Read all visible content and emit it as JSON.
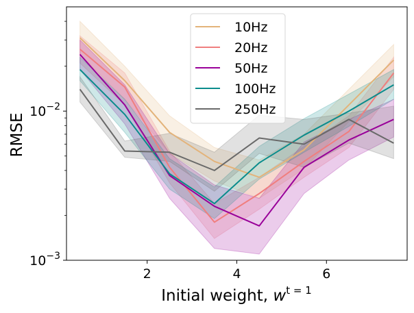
{
  "chart_data": {
    "type": "line",
    "xlabel": "Initial weight, ",
    "xlabel_symbol": "w",
    "xlabel_sup": "t = 1",
    "ylabel": "RMSE",
    "yscale": "log",
    "xlim": [
      0.2,
      7.8
    ],
    "ylim": [
      0.001,
      0.05
    ],
    "xticks": [
      2,
      4,
      6
    ],
    "yticks": [
      {
        "value": 0.001,
        "base": "10",
        "exp": "−3"
      },
      {
        "value": 0.01,
        "base": "10",
        "exp": "−2"
      }
    ],
    "legend_position": "top-center",
    "x": [
      0.5,
      1.5,
      2.5,
      3.5,
      4.5,
      5.5,
      6.5,
      7.5
    ],
    "series": [
      {
        "name": "10Hz",
        "color": "#e3b37a",
        "values": [
          0.031,
          0.016,
          0.0072,
          0.0046,
          0.0036,
          0.0055,
          0.011,
          0.022
        ],
        "lower": [
          0.024,
          0.012,
          0.0052,
          0.0034,
          0.0026,
          0.0041,
          0.0085,
          0.017
        ],
        "upper": [
          0.04,
          0.02,
          0.0093,
          0.0057,
          0.0047,
          0.007,
          0.014,
          0.028
        ]
      },
      {
        "name": "20Hz",
        "color": "#f07e7e",
        "values": [
          0.026,
          0.0145,
          0.0042,
          0.0018,
          0.0028,
          0.0046,
          0.0073,
          0.018
        ],
        "lower": [
          0.021,
          0.011,
          0.0033,
          0.0014,
          0.0022,
          0.0036,
          0.0057,
          0.014
        ],
        "upper": [
          0.032,
          0.018,
          0.0054,
          0.0024,
          0.0036,
          0.0058,
          0.0093,
          0.023
        ]
      },
      {
        "name": "50Hz",
        "color": "#990099",
        "values": [
          0.024,
          0.011,
          0.0037,
          0.0023,
          0.0017,
          0.0042,
          0.0064,
          0.0088
        ],
        "lower": [
          0.019,
          0.0082,
          0.0026,
          0.0012,
          0.0011,
          0.0028,
          0.0047,
          0.0067
        ],
        "upper": [
          0.03,
          0.015,
          0.0052,
          0.0032,
          0.0026,
          0.0062,
          0.0088,
          0.012
        ]
      },
      {
        "name": "100Hz",
        "color": "#0a8c8c",
        "values": [
          0.019,
          0.0095,
          0.0038,
          0.0024,
          0.0045,
          0.0069,
          0.01,
          0.015
        ],
        "lower": [
          0.016,
          0.0072,
          0.003,
          0.0019,
          0.0035,
          0.0053,
          0.0079,
          0.012
        ],
        "upper": [
          0.023,
          0.012,
          0.0048,
          0.0031,
          0.0058,
          0.0089,
          0.013,
          0.019
        ]
      },
      {
        "name": "250Hz",
        "color": "#696969",
        "values": [
          0.014,
          0.0054,
          0.0053,
          0.004,
          0.0066,
          0.006,
          0.0088,
          0.0061
        ],
        "lower": [
          0.0115,
          0.0049,
          0.0046,
          0.0029,
          0.0052,
          0.0042,
          0.0061,
          0.0048
        ],
        "upper": [
          0.017,
          0.0063,
          0.0071,
          0.0053,
          0.0094,
          0.0088,
          0.0097,
          0.0108
        ]
      }
    ]
  }
}
